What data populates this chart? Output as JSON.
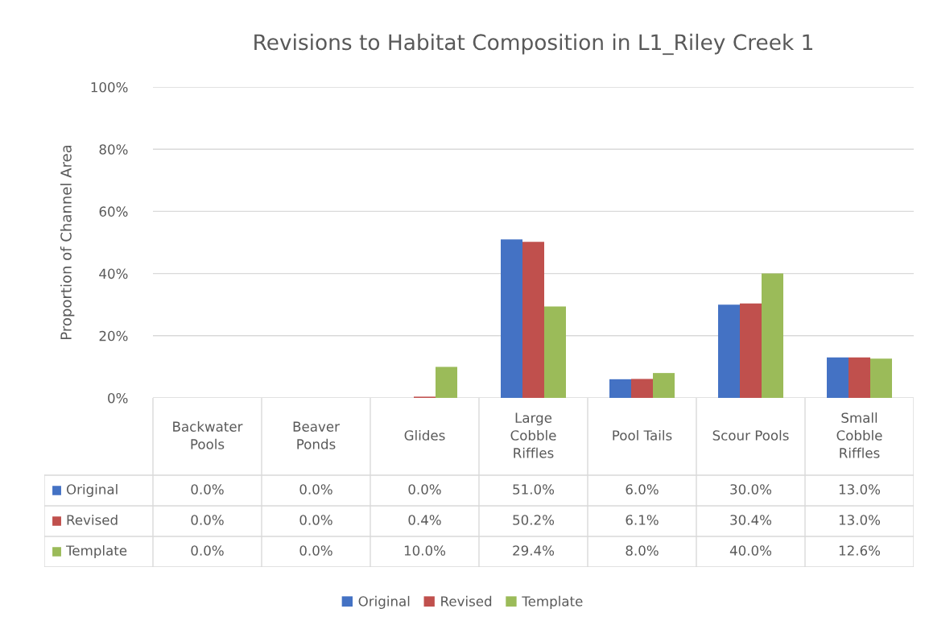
{
  "chart_data": {
    "type": "bar",
    "title": "Revisions to Habitat Composition in L1_Riley Creek 1",
    "ylabel": "Proportion of Channel Area",
    "categories": [
      "Backwater\nPools",
      "Beaver\nPonds",
      "Glides",
      "Large\nCobble\nRiffles",
      "Pool Tails",
      "Scour Pools",
      "Small\nCobble\nRiffles"
    ],
    "series": [
      {
        "name": "Original",
        "color": "#4472c4",
        "values": [
          0.0,
          0.0,
          0.0,
          51.0,
          6.0,
          30.0,
          13.0
        ],
        "value_labels": [
          "0.0%",
          "0.0%",
          "0.0%",
          "51.0%",
          "6.0%",
          "30.0%",
          "13.0%"
        ]
      },
      {
        "name": "Revised",
        "color": "#c0504d",
        "values": [
          0.0,
          0.0,
          0.4,
          50.2,
          6.1,
          30.4,
          13.0
        ],
        "value_labels": [
          "0.0%",
          "0.0%",
          "0.4%",
          "50.2%",
          "6.1%",
          "30.4%",
          "13.0%"
        ]
      },
      {
        "name": "Template",
        "color": "#9bbb59",
        "values": [
          0.0,
          0.0,
          10.0,
          29.4,
          8.0,
          40.0,
          12.6
        ],
        "value_labels": [
          "0.0%",
          "0.0%",
          "10.0%",
          "29.4%",
          "8.0%",
          "40.0%",
          "12.6%"
        ]
      }
    ],
    "ylim": [
      0,
      100
    ],
    "yticks": [
      {
        "value": 0,
        "label": "0%"
      },
      {
        "value": 20,
        "label": "20%"
      },
      {
        "value": 40,
        "label": "40%"
      },
      {
        "value": 60,
        "label": "60%"
      },
      {
        "value": 80,
        "label": "80%"
      },
      {
        "value": 100,
        "label": "100%"
      }
    ],
    "grid": "y",
    "legend": "bottom"
  }
}
